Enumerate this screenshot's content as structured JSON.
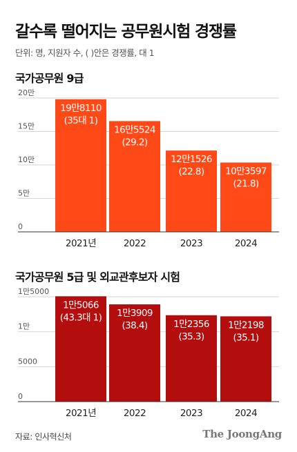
{
  "header": {
    "title": "갈수록 떨어지는 공무원시험 경쟁률",
    "unit_note": "단위: 명, 지원자 수, ( )안은 경쟁률, 대 1"
  },
  "chart_data": [
    {
      "type": "bar",
      "title": "국가공무원 9급",
      "categories": [
        "2021년",
        "2022",
        "2023",
        "2024"
      ],
      "values": [
        198110,
        165524,
        121526,
        103597
      ],
      "value_labels": [
        "19만8110",
        "16만5524",
        "12만1526",
        "10만3597"
      ],
      "ratio_labels": [
        "(35대 1)",
        "(29.2)",
        "(22.8)",
        "(21.8)"
      ],
      "ylim": [
        0,
        200000
      ],
      "yticks": [
        0,
        50000,
        100000,
        150000,
        200000
      ],
      "ytick_labels": [
        "0",
        "5만",
        "10만",
        "15만",
        "20만"
      ],
      "grid": true,
      "color": "#ff4a17"
    },
    {
      "type": "bar",
      "title": "국가공무원 5급 및 외교관후보자 시험",
      "categories": [
        "2021년",
        "2022",
        "2023",
        "2024"
      ],
      "values": [
        15066,
        13909,
        12356,
        12198
      ],
      "value_labels": [
        "1만5066",
        "1만3909",
        "1만2356",
        "1만2198"
      ],
      "ratio_labels": [
        "(43.3대 1)",
        "(38.4)",
        "(35.3)",
        "(35.1)"
      ],
      "ylim": [
        0,
        15000
      ],
      "yticks": [
        0,
        5000,
        10000,
        15000
      ],
      "ytick_labels": [
        "0",
        "5000",
        "1만",
        "1만5000"
      ],
      "grid": true,
      "color": "#b30d0d"
    }
  ],
  "footer": {
    "source": "자료: 인사혁신처",
    "brand": "The JoongAng"
  }
}
